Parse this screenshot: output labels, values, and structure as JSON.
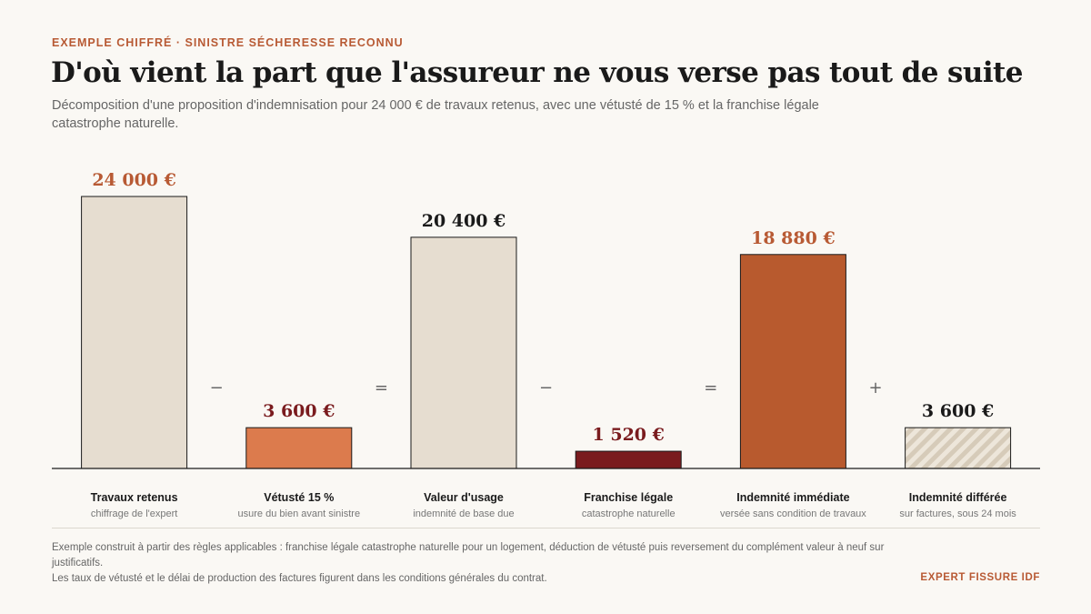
{
  "header": {
    "eyebrow": "EXEMPLE CHIFFRÉ · SINISTRE SÉCHERESSE RECONNU",
    "title": "D'où vient la part que l'assureur ne vous verse pas tout de suite",
    "subtitle": "Décomposition d'une proposition d'indemnisation pour 24 000 € de travaux retenus, avec une vétusté de 15 % et la franchise légale catastrophe naturelle."
  },
  "chart_data": {
    "type": "bar",
    "categories": [
      "Travaux retenus",
      "Vétusté 15 %",
      "Valeur d'usage",
      "Franchise légale",
      "Indemnité immédiate",
      "Indemnité différée"
    ],
    "sublabels": [
      "chiffrage de l'expert",
      "usure du bien avant sinistre",
      "indemnité de base due",
      "catastrophe naturelle",
      "versée sans condition de travaux",
      "sur factures, sous 24 mois"
    ],
    "values": [
      24000,
      3600,
      20400,
      1520,
      18880,
      3600
    ],
    "value_labels": [
      "24 000 €",
      "3 600 €",
      "20 400 €",
      "1 520 €",
      "18 880 €",
      "3 600 €"
    ],
    "operators": [
      "−",
      "=",
      "−",
      "=",
      "+"
    ],
    "colors": [
      "#e6ddd0",
      "#dc7b4d",
      "#e6ddd0",
      "#7a1b1e",
      "#b85a2e",
      "hatched"
    ],
    "value_label_colors": [
      "#b85a34",
      "#7a1b1e",
      "#1a1a1a",
      "#7a1b1e",
      "#b85a34",
      "#1a1a1a"
    ],
    "ylim": [
      0,
      24000
    ]
  },
  "footer": {
    "note_line1": "Exemple construit à partir des règles applicables : franchise légale catastrophe naturelle pour un logement, déduction de vétusté puis reversement du complément valeur à neuf sur justificatifs.",
    "note_line2": "Les taux de vétusté et le délai de production des factures figurent dans les conditions générales du contrat.",
    "brand": "EXPERT FISSURE IDF"
  }
}
